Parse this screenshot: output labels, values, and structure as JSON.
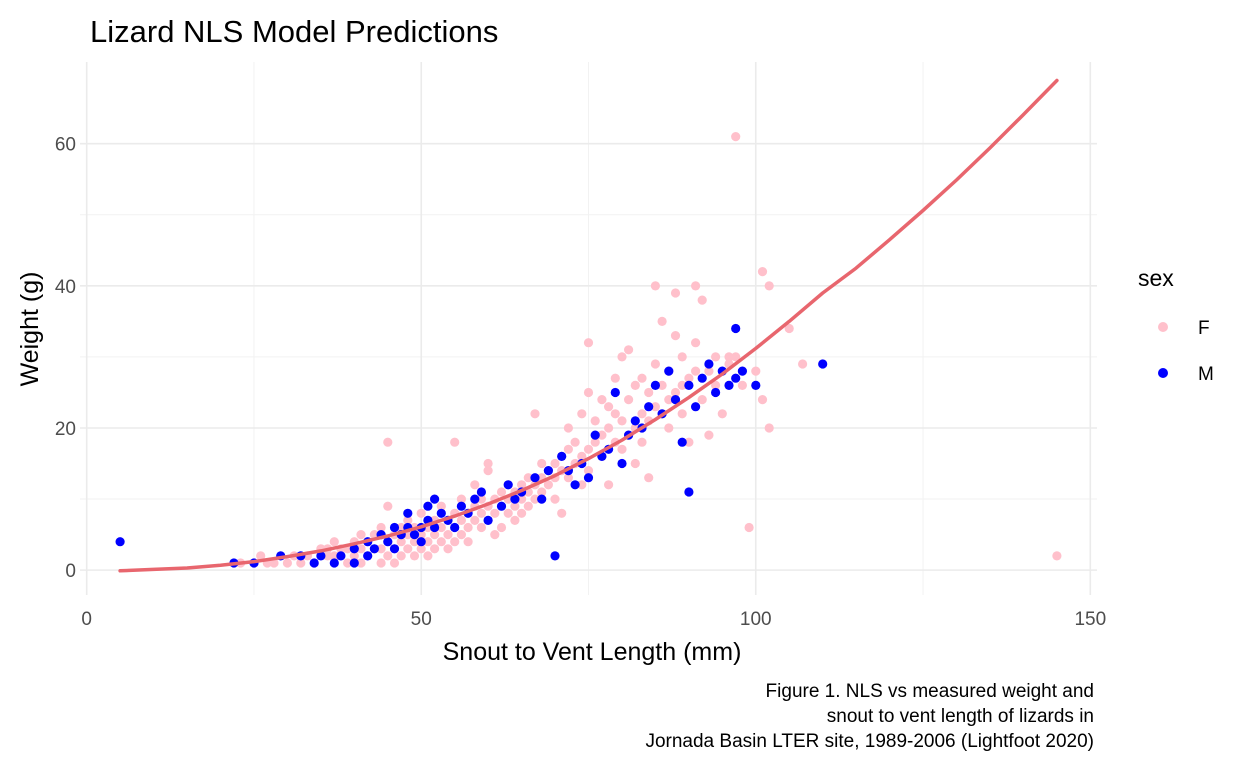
{
  "chart_data": {
    "type": "scatter",
    "title": "Lizard NLS Model Predictions",
    "xlabel": "Snout to Vent Length (mm)",
    "ylabel": "Weight (g)",
    "xlim": [
      -1,
      151
    ],
    "ylim": [
      -3.5,
      71.5
    ],
    "xticks": [
      0,
      50,
      100,
      150
    ],
    "yticks": [
      0,
      20,
      40,
      60
    ],
    "grid": true,
    "legend": {
      "title": "sex",
      "placement": "right",
      "entries": [
        {
          "label": "F",
          "color": "#ffc0cb"
        },
        {
          "label": "M",
          "color": "#0000ff"
        }
      ]
    },
    "caption": [
      "Figure 1. NLS vs measured weight and",
      "snout to vent length of lizards in",
      "Jornada Basin LTER site, 1989-2006 (Lightfoot 2020)"
    ],
    "series": [
      {
        "name": "F",
        "color": "#ffc0cb",
        "points": [
          [
            23,
            1
          ],
          [
            25,
            1
          ],
          [
            26,
            2
          ],
          [
            27,
            1
          ],
          [
            28,
            1
          ],
          [
            30,
            1
          ],
          [
            31,
            2
          ],
          [
            32,
            1
          ],
          [
            33,
            2
          ],
          [
            34,
            1
          ],
          [
            35,
            3
          ],
          [
            36,
            2
          ],
          [
            36,
            3
          ],
          [
            37,
            2
          ],
          [
            37,
            4
          ],
          [
            38,
            2
          ],
          [
            38,
            3
          ],
          [
            39,
            1
          ],
          [
            39,
            3
          ],
          [
            40,
            2
          ],
          [
            40,
            4
          ],
          [
            41,
            1
          ],
          [
            41,
            3
          ],
          [
            41,
            5
          ],
          [
            42,
            2
          ],
          [
            42,
            4
          ],
          [
            43,
            3
          ],
          [
            43,
            5
          ],
          [
            44,
            1
          ],
          [
            44,
            3
          ],
          [
            44,
            6
          ],
          [
            45,
            2
          ],
          [
            45,
            4
          ],
          [
            45,
            9
          ],
          [
            45,
            18
          ],
          [
            46,
            3
          ],
          [
            46,
            5
          ],
          [
            46,
            1
          ],
          [
            47,
            2
          ],
          [
            47,
            4
          ],
          [
            47,
            6
          ],
          [
            48,
            3
          ],
          [
            48,
            5
          ],
          [
            48,
            7
          ],
          [
            49,
            2
          ],
          [
            49,
            4
          ],
          [
            49,
            6
          ],
          [
            50,
            3
          ],
          [
            50,
            5
          ],
          [
            50,
            8
          ],
          [
            51,
            4
          ],
          [
            51,
            6
          ],
          [
            51,
            2
          ],
          [
            52,
            5
          ],
          [
            52,
            7
          ],
          [
            52,
            3
          ],
          [
            53,
            4
          ],
          [
            53,
            6
          ],
          [
            53,
            9
          ],
          [
            54,
            5
          ],
          [
            54,
            7
          ],
          [
            54,
            3
          ],
          [
            55,
            6
          ],
          [
            55,
            8
          ],
          [
            55,
            4
          ],
          [
            55,
            18
          ],
          [
            56,
            5
          ],
          [
            56,
            7
          ],
          [
            56,
            10
          ],
          [
            57,
            6
          ],
          [
            57,
            8
          ],
          [
            57,
            4
          ],
          [
            58,
            7
          ],
          [
            58,
            9
          ],
          [
            58,
            12
          ],
          [
            59,
            6
          ],
          [
            59,
            8
          ],
          [
            59,
            10
          ],
          [
            60,
            7
          ],
          [
            60,
            9
          ],
          [
            60,
            14
          ],
          [
            60,
            15
          ],
          [
            61,
            8
          ],
          [
            61,
            10
          ],
          [
            61,
            5
          ],
          [
            62,
            9
          ],
          [
            62,
            11
          ],
          [
            62,
            6
          ],
          [
            63,
            8
          ],
          [
            63,
            10
          ],
          [
            63,
            12
          ],
          [
            64,
            9
          ],
          [
            64,
            11
          ],
          [
            64,
            7
          ],
          [
            65,
            10
          ],
          [
            65,
            12
          ],
          [
            65,
            8
          ],
          [
            66,
            11
          ],
          [
            66,
            9
          ],
          [
            66,
            13
          ],
          [
            67,
            12
          ],
          [
            67,
            10
          ],
          [
            67,
            22
          ],
          [
            68,
            11
          ],
          [
            68,
            13
          ],
          [
            68,
            15
          ],
          [
            69,
            12
          ],
          [
            69,
            14
          ],
          [
            70,
            13
          ],
          [
            70,
            15
          ],
          [
            70,
            10
          ],
          [
            71,
            14
          ],
          [
            71,
            16
          ],
          [
            71,
            8
          ],
          [
            72,
            13
          ],
          [
            72,
            17
          ],
          [
            72,
            20
          ],
          [
            73,
            15
          ],
          [
            73,
            18
          ],
          [
            74,
            16
          ],
          [
            74,
            12
          ],
          [
            74,
            22
          ],
          [
            75,
            17
          ],
          [
            75,
            14
          ],
          [
            75,
            25
          ],
          [
            75,
            32
          ],
          [
            76,
            18
          ],
          [
            76,
            21
          ],
          [
            77,
            16
          ],
          [
            77,
            19
          ],
          [
            77,
            24
          ],
          [
            78,
            20
          ],
          [
            78,
            23
          ],
          [
            78,
            12
          ],
          [
            79,
            18
          ],
          [
            79,
            22
          ],
          [
            79,
            27
          ],
          [
            80,
            17
          ],
          [
            80,
            21
          ],
          [
            80,
            30
          ],
          [
            81,
            19
          ],
          [
            81,
            24
          ],
          [
            81,
            31
          ],
          [
            82,
            20
          ],
          [
            82,
            26
          ],
          [
            82,
            15
          ],
          [
            83,
            22
          ],
          [
            83,
            27
          ],
          [
            83,
            18
          ],
          [
            84,
            21
          ],
          [
            84,
            25
          ],
          [
            84,
            13
          ],
          [
            85,
            23
          ],
          [
            85,
            29
          ],
          [
            85,
            40
          ],
          [
            86,
            22
          ],
          [
            86,
            26
          ],
          [
            86,
            35
          ],
          [
            87,
            24
          ],
          [
            87,
            28
          ],
          [
            87,
            20
          ],
          [
            88,
            25
          ],
          [
            88,
            33
          ],
          [
            88,
            39
          ],
          [
            89,
            26
          ],
          [
            89,
            30
          ],
          [
            89,
            22
          ],
          [
            90,
            27
          ],
          [
            90,
            18
          ],
          [
            91,
            28
          ],
          [
            91,
            32
          ],
          [
            91,
            40
          ],
          [
            92,
            24
          ],
          [
            92,
            38
          ],
          [
            93,
            28
          ],
          [
            93,
            19
          ],
          [
            94,
            30
          ],
          [
            94,
            26
          ],
          [
            95,
            22
          ],
          [
            96,
            30
          ],
          [
            96,
            29
          ],
          [
            97,
            30
          ],
          [
            97,
            61
          ],
          [
            98,
            26
          ],
          [
            99,
            6
          ],
          [
            100,
            28
          ],
          [
            101,
            42
          ],
          [
            101,
            24
          ],
          [
            102,
            40
          ],
          [
            102,
            20
          ],
          [
            105,
            34
          ],
          [
            107,
            29
          ],
          [
            145,
            2
          ]
        ]
      },
      {
        "name": "M",
        "color": "#0000ff",
        "points": [
          [
            5,
            4
          ],
          [
            22,
            1
          ],
          [
            25,
            1
          ],
          [
            29,
            2
          ],
          [
            32,
            2
          ],
          [
            34,
            1
          ],
          [
            35,
            2
          ],
          [
            37,
            1
          ],
          [
            38,
            2
          ],
          [
            40,
            1
          ],
          [
            40,
            3
          ],
          [
            42,
            2
          ],
          [
            42,
            4
          ],
          [
            43,
            3
          ],
          [
            44,
            5
          ],
          [
            45,
            4
          ],
          [
            46,
            6
          ],
          [
            46,
            3
          ],
          [
            47,
            5
          ],
          [
            48,
            6
          ],
          [
            48,
            8
          ],
          [
            49,
            5
          ],
          [
            50,
            6
          ],
          [
            50,
            4
          ],
          [
            51,
            7
          ],
          [
            51,
            9
          ],
          [
            52,
            6
          ],
          [
            52,
            10
          ],
          [
            53,
            8
          ],
          [
            54,
            7
          ],
          [
            55,
            6
          ],
          [
            56,
            9
          ],
          [
            57,
            8
          ],
          [
            58,
            10
          ],
          [
            59,
            11
          ],
          [
            60,
            7
          ],
          [
            62,
            9
          ],
          [
            63,
            12
          ],
          [
            64,
            10
          ],
          [
            65,
            11
          ],
          [
            67,
            13
          ],
          [
            68,
            10
          ],
          [
            69,
            14
          ],
          [
            70,
            2
          ],
          [
            71,
            16
          ],
          [
            72,
            14
          ],
          [
            73,
            12
          ],
          [
            74,
            15
          ],
          [
            75,
            13
          ],
          [
            76,
            19
          ],
          [
            77,
            16
          ],
          [
            78,
            17
          ],
          [
            79,
            25
          ],
          [
            80,
            15
          ],
          [
            81,
            19
          ],
          [
            82,
            21
          ],
          [
            83,
            20
          ],
          [
            84,
            23
          ],
          [
            85,
            26
          ],
          [
            86,
            22
          ],
          [
            87,
            28
          ],
          [
            88,
            24
          ],
          [
            89,
            18
          ],
          [
            90,
            26
          ],
          [
            90,
            11
          ],
          [
            91,
            23
          ],
          [
            92,
            27
          ],
          [
            93,
            29
          ],
          [
            94,
            25
          ],
          [
            95,
            28
          ],
          [
            96,
            26
          ],
          [
            97,
            27
          ],
          [
            97,
            34
          ],
          [
            98,
            28
          ],
          [
            100,
            26
          ],
          [
            110,
            29
          ]
        ]
      },
      {
        "name": "",
        "type": "line",
        "color": "#e8666e",
        "points": [
          [
            5,
            -0.1
          ],
          [
            10,
            0.1
          ],
          [
            15,
            0.3
          ],
          [
            20,
            0.7
          ],
          [
            25,
            1.2
          ],
          [
            30,
            1.9
          ],
          [
            35,
            2.7
          ],
          [
            40,
            3.7
          ],
          [
            45,
            4.8
          ],
          [
            50,
            6.1
          ],
          [
            55,
            7.6
          ],
          [
            60,
            9.3
          ],
          [
            65,
            11.2
          ],
          [
            70,
            13.3
          ],
          [
            75,
            15.7
          ],
          [
            80,
            18.3
          ],
          [
            85,
            21.2
          ],
          [
            90,
            24.3
          ],
          [
            95,
            27.6
          ],
          [
            100,
            31.2
          ],
          [
            105,
            35.0
          ],
          [
            110,
            39.0
          ],
          [
            115,
            42.5
          ],
          [
            120,
            46.5
          ],
          [
            125,
            50.6
          ],
          [
            130,
            54.9
          ],
          [
            135,
            59.4
          ],
          [
            140,
            64.1
          ],
          [
            145,
            68.9
          ]
        ]
      }
    ]
  }
}
